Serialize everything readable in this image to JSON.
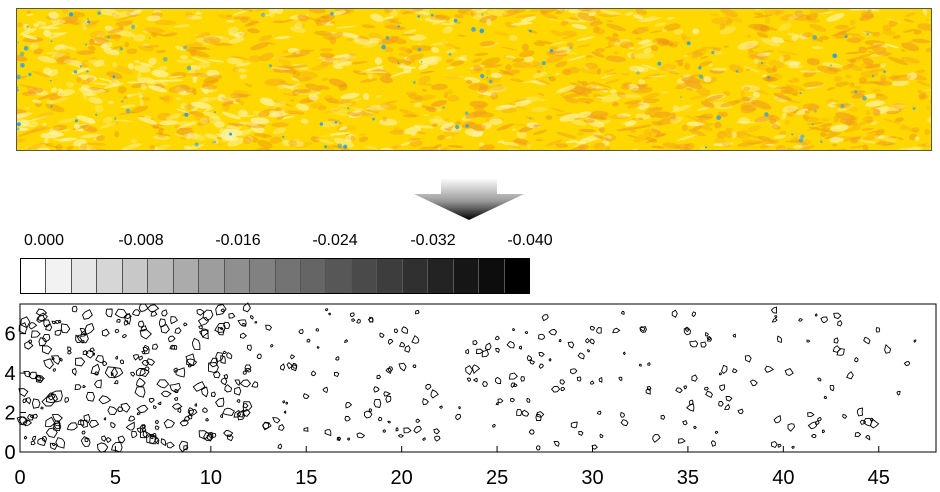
{
  "colors": {
    "map_base": "#ffd800",
    "map_warm": "#f2a31a",
    "map_light": "#fff3a0",
    "map_blue": "#2a9fe6",
    "contour": "#000000"
  },
  "icons": {
    "arrow": "down-arrow-icon"
  },
  "scale": {
    "labels": [
      "0.000",
      "-0.008",
      "-0.016",
      "-0.024",
      "-0.032",
      "-0.040"
    ],
    "swatches": [
      "#ffffff",
      "#f2f2f2",
      "#e6e6e6",
      "#d6d6d6",
      "#c8c8c8",
      "#b9b9b9",
      "#ababab",
      "#9d9d9d",
      "#8f8f8f",
      "#818181",
      "#737373",
      "#656565",
      "#575757",
      "#4a4a4a",
      "#3d3d3d",
      "#303030",
      "#232323",
      "#161616",
      "#0d0d0d",
      "#000000"
    ]
  },
  "chart_data": {
    "type": "contour",
    "title": "",
    "xlabel": "",
    "ylabel": "",
    "xlim": [
      0,
      48
    ],
    "ylim": [
      0,
      7.5
    ],
    "x_ticks": [
      0,
      5,
      10,
      15,
      20,
      25,
      30,
      35,
      40,
      45
    ],
    "y_ticks": [
      0,
      2,
      4,
      6
    ],
    "grid": false
  }
}
